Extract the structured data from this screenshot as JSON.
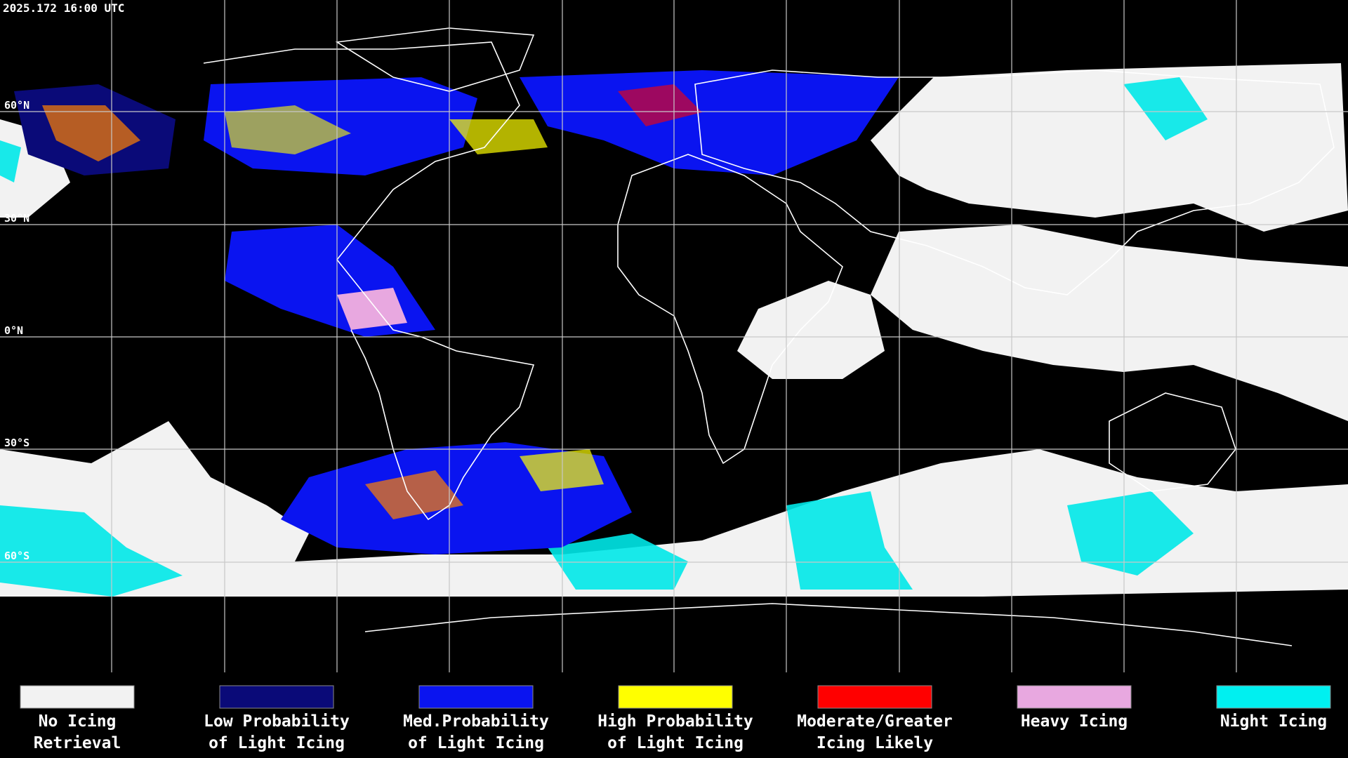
{
  "header": {
    "timestamp": "2025.172 16:00 UTC"
  },
  "map": {
    "lat_labels": [
      "60°N",
      "30°N",
      "0°N",
      "30°S",
      "60°S"
    ]
  },
  "legend": {
    "items": [
      {
        "label": [
          "No Icing",
          "Retrieval"
        ],
        "color": "#f2f2f2"
      },
      {
        "label": [
          "Low Probability",
          "of Light Icing"
        ],
        "color": "#0a0a78"
      },
      {
        "label": [
          "Med.Probability",
          "of Light Icing"
        ],
        "color": "#0a14f0"
      },
      {
        "label": [
          "High Probability",
          "of Light Icing"
        ],
        "color": "#ffff00"
      },
      {
        "label": [
          "Moderate/Greater",
          "Icing Likely"
        ],
        "color": "#ff0000"
      },
      {
        "label": [
          "Heavy Icing"
        ],
        "color": "#e8a8e0"
      },
      {
        "label": [
          "Night Icing"
        ],
        "color": "#00f0f0"
      }
    ]
  }
}
